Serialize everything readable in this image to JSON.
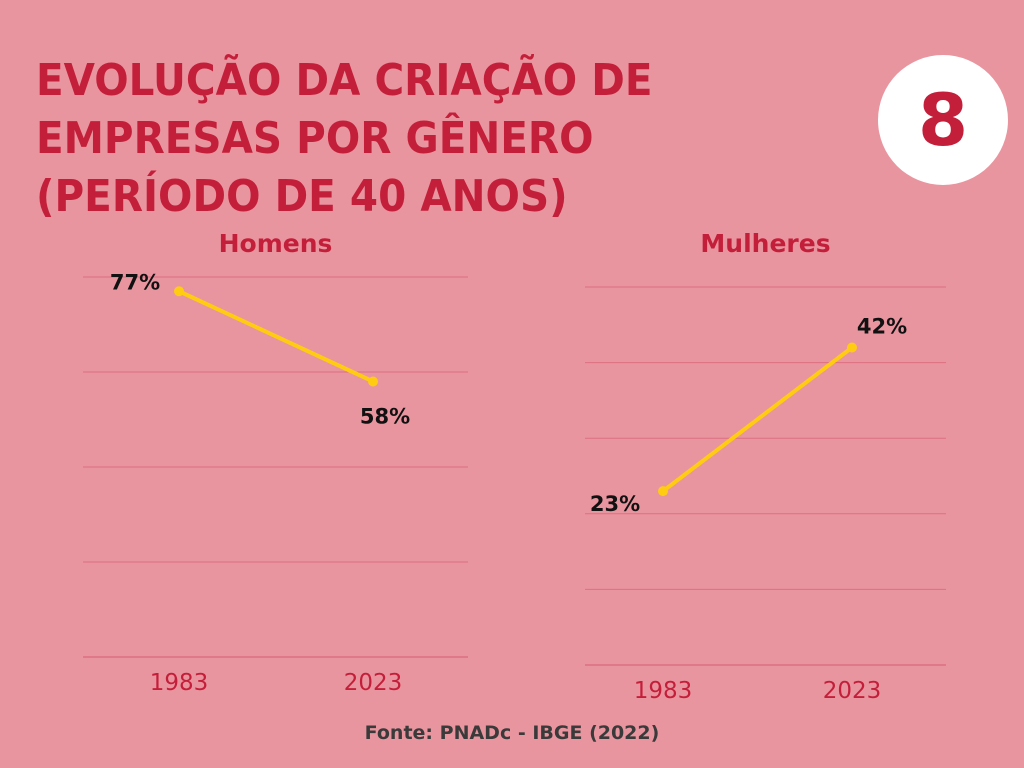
{
  "title": "EVOLUÇÃO DA CRIAÇÃO DE EMPRESAS POR GÊNERO (PERÍODO DE 40 ANOS)",
  "badge": "8",
  "source": "Fonte: PNADc - IBGE (2022)",
  "colors": {
    "background": "#E9959F",
    "accent": "#C41F3A",
    "line": "#FFCC11",
    "grid": "#DC6F80"
  },
  "chart_data": [
    {
      "type": "line",
      "title": "Homens",
      "categories": [
        "1983",
        "2023"
      ],
      "values": [
        77,
        58
      ],
      "labels": [
        "77%",
        "58%"
      ],
      "ylim": [
        0,
        80
      ],
      "grid": true
    },
    {
      "type": "line",
      "title": "Mulheres",
      "categories": [
        "1983",
        "2023"
      ],
      "values": [
        23,
        42
      ],
      "labels": [
        "23%",
        "42%"
      ],
      "ylim": [
        0,
        50
      ],
      "grid": true
    }
  ]
}
